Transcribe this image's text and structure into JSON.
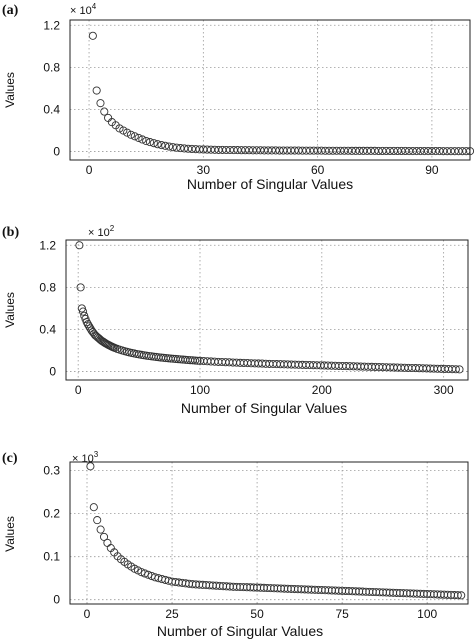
{
  "chart_data": [
    {
      "type": "scatter",
      "panel_label": "(a)",
      "multiplier": "× 10",
      "multiplier_exp": "4",
      "xlabel": "Number of Singular Values",
      "ylabel": "Values",
      "xlim": [
        -5,
        100
      ],
      "ylim": [
        -0.08,
        1.25
      ],
      "xticks": [
        0,
        30,
        60,
        90
      ],
      "yticks": [
        0,
        0.4,
        0.8,
        1.2
      ],
      "xtick_labels": [
        "0",
        "30",
        "60",
        "90"
      ],
      "ytick_labels": [
        "0",
        "0.4",
        "0.8",
        "1.2"
      ],
      "grid": true,
      "series": [
        {
          "values_x": [
            1,
            2,
            3,
            4,
            5,
            6,
            7,
            8,
            9,
            10,
            11,
            12,
            13,
            14,
            15,
            16,
            17,
            18,
            19,
            20,
            21,
            22,
            23,
            24,
            25,
            26,
            27,
            28,
            29,
            30,
            31,
            32,
            33,
            34,
            35,
            36,
            37,
            38,
            39,
            40,
            41,
            42,
            43,
            44,
            45,
            46,
            47,
            48,
            49,
            50,
            51,
            52,
            53,
            54,
            55,
            56,
            57,
            58,
            59,
            60,
            61,
            62,
            63,
            64,
            65,
            66,
            67,
            68,
            69,
            70,
            71,
            72,
            73,
            74,
            75,
            76,
            77,
            78,
            79,
            80,
            81,
            82,
            83,
            84,
            85,
            86,
            87,
            88,
            89,
            90,
            91,
            92,
            93,
            94,
            95,
            96,
            97,
            98,
            99,
            100
          ],
          "values_y": [
            1.1,
            0.58,
            0.46,
            0.38,
            0.32,
            0.28,
            0.25,
            0.22,
            0.2,
            0.18,
            0.16,
            0.145,
            0.13,
            0.115,
            0.1,
            0.09,
            0.08,
            0.07,
            0.062,
            0.055,
            0.048,
            0.042,
            0.037,
            0.033,
            0.03,
            0.027,
            0.025,
            0.023,
            0.021,
            0.02,
            0.019,
            0.018,
            0.017,
            0.016,
            0.016,
            0.015,
            0.015,
            0.014,
            0.014,
            0.013,
            0.013,
            0.013,
            0.012,
            0.012,
            0.012,
            0.011,
            0.011,
            0.011,
            0.011,
            0.01,
            0.01,
            0.01,
            0.01,
            0.01,
            0.01,
            0.009,
            0.009,
            0.009,
            0.009,
            0.009,
            0.009,
            0.008,
            0.008,
            0.008,
            0.008,
            0.008,
            0.008,
            0.008,
            0.007,
            0.007,
            0.007,
            0.007,
            0.007,
            0.007,
            0.007,
            0.006,
            0.006,
            0.006,
            0.006,
            0.006,
            0.006,
            0.006,
            0.006,
            0.005,
            0.005,
            0.005,
            0.005,
            0.005,
            0.005,
            0.005,
            0.005,
            0.005,
            0.004,
            0.004,
            0.004,
            0.004,
            0.004,
            0.004,
            0.004,
            0.004
          ]
        }
      ]
    },
    {
      "type": "scatter",
      "panel_label": "(b)",
      "multiplier": "× 10",
      "multiplier_exp": "2",
      "xlabel": "Number of Singular Values",
      "ylabel": "Values",
      "xlim": [
        -10,
        320
      ],
      "ylim": [
        -0.08,
        1.25
      ],
      "xticks": [
        0,
        100,
        200,
        300
      ],
      "yticks": [
        0,
        0.4,
        0.8,
        1.2
      ],
      "xtick_labels": [
        "0",
        "100",
        "200",
        "300"
      ],
      "ytick_labels": [
        "0",
        "0.4",
        "0.8",
        "1.2"
      ],
      "grid": true,
      "series": [
        {
          "values_x": [
            1,
            2,
            3,
            4,
            5,
            6,
            7,
            8,
            9,
            10,
            11,
            12,
            13,
            14,
            15,
            16,
            17,
            18,
            19,
            20,
            21,
            22,
            23,
            24,
            25,
            26,
            27,
            28,
            29,
            30,
            32,
            34,
            36,
            38,
            40,
            42,
            44,
            46,
            48,
            50,
            52,
            54,
            56,
            58,
            60,
            62,
            64,
            66,
            68,
            70,
            72,
            74,
            76,
            78,
            80,
            82,
            84,
            86,
            88,
            90,
            92,
            94,
            96,
            98,
            100,
            103,
            106,
            109,
            112,
            115,
            118,
            121,
            124,
            127,
            130,
            133,
            136,
            139,
            142,
            145,
            148,
            151,
            154,
            157,
            160,
            163,
            166,
            169,
            172,
            175,
            178,
            181,
            184,
            187,
            190,
            193,
            196,
            199,
            202,
            205,
            208,
            211,
            214,
            217,
            220,
            223,
            226,
            229,
            232,
            235,
            238,
            241,
            244,
            247,
            250,
            253,
            256,
            259,
            262,
            265,
            268,
            271,
            274,
            277,
            280,
            283,
            286,
            289,
            292,
            295,
            298,
            301,
            304,
            307,
            310,
            313
          ],
          "values_y": [
            1.2,
            0.8,
            0.6,
            0.57,
            0.53,
            0.5,
            0.47,
            0.45,
            0.43,
            0.41,
            0.39,
            0.375,
            0.36,
            0.345,
            0.335,
            0.325,
            0.315,
            0.305,
            0.295,
            0.287,
            0.28,
            0.272,
            0.265,
            0.258,
            0.252,
            0.246,
            0.24,
            0.235,
            0.23,
            0.225,
            0.216,
            0.208,
            0.201,
            0.194,
            0.188,
            0.182,
            0.177,
            0.172,
            0.167,
            0.163,
            0.159,
            0.155,
            0.151,
            0.148,
            0.145,
            0.142,
            0.139,
            0.136,
            0.133,
            0.131,
            0.128,
            0.126,
            0.124,
            0.122,
            0.12,
            0.118,
            0.116,
            0.114,
            0.112,
            0.11,
            0.108,
            0.107,
            0.105,
            0.103,
            0.102,
            0.1,
            0.098,
            0.096,
            0.094,
            0.092,
            0.091,
            0.089,
            0.088,
            0.086,
            0.085,
            0.083,
            0.082,
            0.081,
            0.079,
            0.078,
            0.077,
            0.076,
            0.074,
            0.073,
            0.072,
            0.071,
            0.07,
            0.069,
            0.068,
            0.067,
            0.066,
            0.065,
            0.064,
            0.063,
            0.062,
            0.061,
            0.06,
            0.059,
            0.058,
            0.057,
            0.056,
            0.055,
            0.054,
            0.053,
            0.052,
            0.051,
            0.05,
            0.049,
            0.048,
            0.047,
            0.046,
            0.045,
            0.044,
            0.043,
            0.042,
            0.041,
            0.04,
            0.039,
            0.038,
            0.037,
            0.036,
            0.035,
            0.034,
            0.033,
            0.032,
            0.031,
            0.03,
            0.029,
            0.028,
            0.027,
            0.026,
            0.025,
            0.024,
            0.023,
            0.022,
            0.021
          ]
        }
      ]
    },
    {
      "type": "scatter",
      "panel_label": "(c)",
      "multiplier": "× 10",
      "multiplier_exp": "3",
      "xlabel": "Number of Singular Values",
      "ylabel": "Values",
      "xlim": [
        -5,
        112
      ],
      "ylim": [
        -0.01,
        0.32
      ],
      "xticks": [
        0,
        25,
        50,
        75,
        100
      ],
      "yticks": [
        0,
        0.1,
        0.2,
        0.3
      ],
      "xtick_labels": [
        "0",
        "25",
        "50",
        "75",
        "100"
      ],
      "ytick_labels": [
        "0",
        "0.1",
        "0.2",
        "0.3"
      ],
      "grid": true,
      "series": [
        {
          "values_x": [
            1,
            2,
            3,
            4,
            5,
            6,
            7,
            8,
            9,
            10,
            11,
            12,
            13,
            14,
            15,
            16,
            17,
            18,
            19,
            20,
            21,
            22,
            23,
            24,
            25,
            26,
            27,
            28,
            29,
            30,
            31,
            32,
            33,
            34,
            35,
            36,
            37,
            38,
            39,
            40,
            41,
            42,
            43,
            44,
            45,
            46,
            47,
            48,
            49,
            50,
            51,
            52,
            53,
            54,
            55,
            56,
            57,
            58,
            59,
            60,
            61,
            62,
            63,
            64,
            65,
            66,
            67,
            68,
            69,
            70,
            71,
            72,
            73,
            74,
            75,
            76,
            77,
            78,
            79,
            80,
            81,
            82,
            83,
            84,
            85,
            86,
            87,
            88,
            89,
            90,
            91,
            92,
            93,
            94,
            95,
            96,
            97,
            98,
            99,
            100,
            101,
            102,
            103,
            104,
            105,
            106,
            107,
            108,
            109,
            110
          ],
          "values_y": [
            0.31,
            0.215,
            0.185,
            0.163,
            0.146,
            0.132,
            0.12,
            0.11,
            0.101,
            0.094,
            0.088,
            0.082,
            0.077,
            0.072,
            0.068,
            0.064,
            0.061,
            0.058,
            0.055,
            0.052,
            0.05,
            0.048,
            0.046,
            0.044,
            0.042,
            0.041,
            0.04,
            0.039,
            0.038,
            0.037,
            0.036,
            0.0355,
            0.035,
            0.0345,
            0.034,
            0.0335,
            0.033,
            0.0325,
            0.032,
            0.0315,
            0.031,
            0.0305,
            0.03,
            0.0298,
            0.0295,
            0.0292,
            0.029,
            0.0287,
            0.0284,
            0.0281,
            0.0278,
            0.0275,
            0.0272,
            0.0269,
            0.0266,
            0.0263,
            0.026,
            0.0257,
            0.0254,
            0.0251,
            0.0248,
            0.0245,
            0.0242,
            0.0239,
            0.0236,
            0.0233,
            0.023,
            0.0227,
            0.0224,
            0.0221,
            0.0218,
            0.0215,
            0.0212,
            0.0209,
            0.0206,
            0.0203,
            0.02,
            0.0197,
            0.0194,
            0.0191,
            0.0188,
            0.0185,
            0.0182,
            0.0179,
            0.0176,
            0.0173,
            0.017,
            0.0167,
            0.0164,
            0.0161,
            0.0158,
            0.0155,
            0.0152,
            0.0149,
            0.0146,
            0.0143,
            0.014,
            0.0137,
            0.0134,
            0.0131,
            0.0128,
            0.0125,
            0.0122,
            0.0119,
            0.0116,
            0.0113,
            0.011,
            0.0107,
            0.0104,
            0.0101
          ]
        }
      ]
    }
  ]
}
